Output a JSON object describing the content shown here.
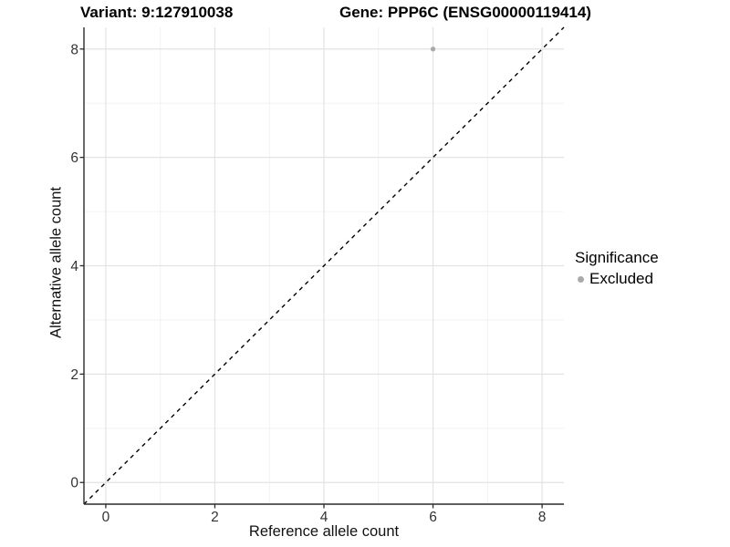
{
  "chart_data": {
    "type": "scatter",
    "title_left": "Variant: 9:127910038",
    "title_right": "Gene: PPP6C (ENSG00000119414)",
    "xlabel": "Reference allele count",
    "ylabel": "Alternative allele count",
    "xlim": [
      -0.4,
      8.4
    ],
    "ylim": [
      -0.4,
      8.4
    ],
    "xticks": [
      0,
      2,
      4,
      6,
      8
    ],
    "yticks": [
      0,
      2,
      4,
      6,
      8
    ],
    "minor_xticks": [
      1,
      3,
      5,
      7
    ],
    "minor_yticks": [
      1,
      3,
      5,
      7
    ],
    "grid": true,
    "identity_line": {
      "style": "dashed",
      "from": [
        -0.4,
        -0.4
      ],
      "to": [
        8.4,
        8.4
      ]
    },
    "series": [
      {
        "name": "Excluded",
        "color": "#aaaaaa",
        "points": [
          [
            6,
            8
          ]
        ]
      }
    ],
    "legend": {
      "title": "Significance",
      "position": "right",
      "items": [
        {
          "label": "Excluded",
          "color": "#aaaaaa"
        }
      ]
    }
  },
  "colors": {
    "background": "#ffffff",
    "axis": "#2b2b2b",
    "tick_label": "#333333",
    "grid_major": "#e3e3e3",
    "grid_minor": "#f0f0f0",
    "identity_line": "#000000"
  }
}
